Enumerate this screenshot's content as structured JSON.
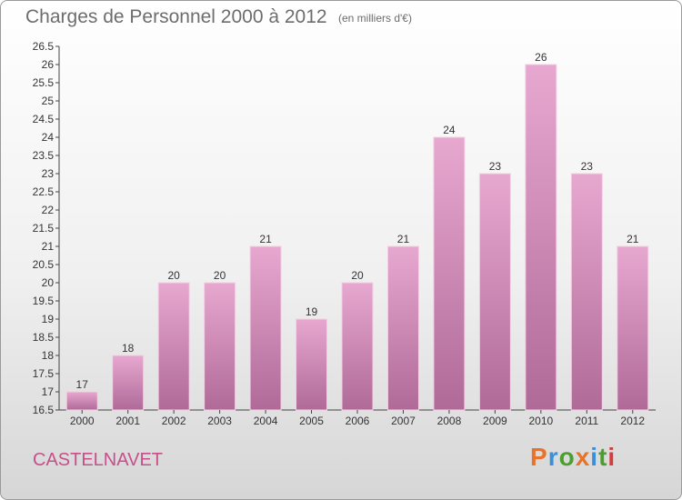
{
  "header": {
    "title": "Charges de Personnel 2000 à 2012",
    "subtitle": "(en milliers d'€)"
  },
  "footer": {
    "commune": "CASTELNAVET",
    "brand": "Proxiti"
  },
  "colors": {
    "bar_top": "#e7a8d0",
    "bar_bottom": "#b06a98",
    "bar_edge": "#f4cfe5",
    "commune": "#c64f8c",
    "brand_letters": [
      "#e8732b",
      "#3d8ed9",
      "#4aa02c",
      "#e8732b",
      "#3d8ed9",
      "#4aa02c",
      "#d83a3a"
    ]
  },
  "chart_data": {
    "type": "bar",
    "categories": [
      "2000",
      "2001",
      "2002",
      "2003",
      "2004",
      "2005",
      "2006",
      "2007",
      "2008",
      "2009",
      "2010",
      "2011",
      "2012"
    ],
    "values": [
      17,
      18,
      20,
      20,
      21,
      19,
      20,
      21,
      24,
      23,
      26,
      23,
      21
    ],
    "ylim": [
      16.5,
      26.5
    ],
    "yticks": [
      "16.5",
      "17",
      "17.5",
      "18",
      "18.5",
      "19",
      "19.5",
      "20",
      "20.5",
      "21",
      "21.5",
      "22",
      "22.5",
      "23",
      "23.5",
      "24",
      "24.5",
      "25",
      "25.5",
      "26",
      "26.5"
    ],
    "grid": false,
    "legend": "none"
  }
}
